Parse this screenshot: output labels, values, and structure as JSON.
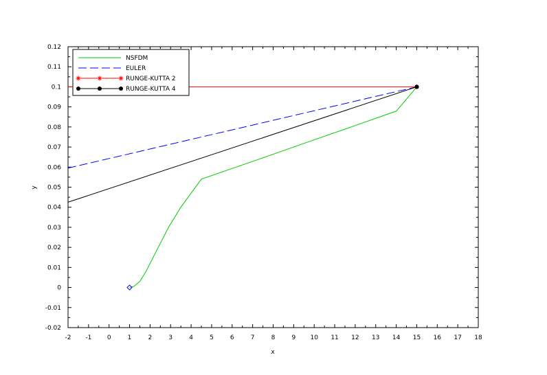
{
  "chart_data": {
    "type": "line",
    "xlabel": "x",
    "ylabel": "y",
    "xlim": [
      -2,
      18
    ],
    "ylim": [
      -0.02,
      0.12
    ],
    "x_ticks": [
      -2,
      -1,
      0,
      1,
      2,
      3,
      4,
      5,
      6,
      7,
      8,
      9,
      10,
      11,
      12,
      13,
      14,
      15,
      16,
      17,
      18
    ],
    "y_ticks": [
      -0.02,
      -0.01,
      0,
      0.01,
      0.02,
      0.03,
      0.04,
      0.05,
      0.06,
      0.07,
      0.08,
      0.09,
      0.1,
      0.11,
      0.12
    ],
    "x_tick_labels": [
      "-2",
      "-1",
      "0",
      "1",
      "2",
      "3",
      "4",
      "5",
      "6",
      "7",
      "8",
      "9",
      "10",
      "11",
      "12",
      "13",
      "14",
      "15",
      "16",
      "17",
      "18"
    ],
    "y_tick_labels": [
      "-0.02",
      "-0.01",
      "0",
      "0.01",
      "0.02",
      "0.03",
      "0.04",
      "0.05",
      "0.06",
      "0.07",
      "0.08",
      "0.09",
      "0.1",
      "0.11",
      "0.12"
    ],
    "grid": false,
    "legend_position": "top-left",
    "series": [
      {
        "name": "NSFDM",
        "color": "#00cc00",
        "dash": "solid",
        "marker": "none",
        "x": [
          1.0,
          1.2,
          1.5,
          1.8,
          2.2,
          2.9,
          3.5,
          4.5,
          6,
          8,
          10,
          12,
          14,
          15
        ],
        "y": [
          0.0,
          0.0005,
          0.003,
          0.008,
          0.016,
          0.03,
          0.04,
          0.054,
          0.0593,
          0.0664,
          0.0736,
          0.0807,
          0.0879,
          0.0999
        ]
      },
      {
        "name": "EULER",
        "color": "#0000ff",
        "dash": "dashed",
        "marker": "none",
        "x": [
          -2,
          15
        ],
        "y": [
          0.0595,
          0.1
        ]
      },
      {
        "name": "RUNGE-KUTTA 2",
        "color": "#ff0000",
        "dash": "solid",
        "marker": "asterisk",
        "x": [
          -2,
          15
        ],
        "y": [
          0.1,
          0.1
        ]
      },
      {
        "name": "RUNGE-KUTTA 4",
        "color": "#000000",
        "dash": "solid",
        "marker": "dot",
        "x": [
          -2,
          15
        ],
        "y": [
          0.0425,
          0.1
        ]
      }
    ],
    "markers": [
      {
        "shape": "diamond",
        "color": "#0000ff",
        "x": 1,
        "y": 0
      },
      {
        "shape": "asterisk",
        "color": "#ff0000",
        "x": 15,
        "y": 0.1
      },
      {
        "shape": "dot",
        "color": "#000000",
        "x": 15,
        "y": 0.1
      }
    ]
  }
}
